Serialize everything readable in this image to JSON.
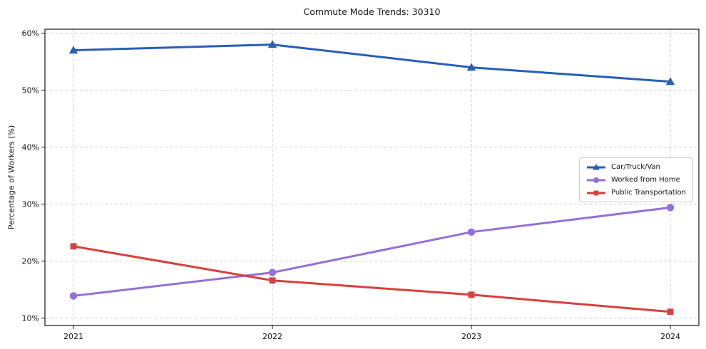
{
  "chart_data": {
    "type": "line",
    "title": "Commute Mode Trends: 30310",
    "ylabel": "Percentage of Workers (%)",
    "categories": [
      "2021",
      "2022",
      "2023",
      "2024"
    ],
    "series": [
      {
        "name": "Car/Truck/Van",
        "color": "#275eb8",
        "marker": "triangle",
        "values": [
          57.0,
          58.0,
          54.0,
          51.5
        ]
      },
      {
        "name": "Worked from Home",
        "color": "#9370db",
        "marker": "circle",
        "values": [
          13.9,
          18.0,
          25.1,
          29.4
        ]
      },
      {
        "name": "Public Transportation",
        "color": "#d8403d",
        "marker": "square",
        "values": [
          22.6,
          16.6,
          14.1,
          11.1
        ]
      }
    ],
    "yticks": [
      "10%",
      "20%",
      "30%",
      "40%",
      "50%",
      "60%"
    ],
    "ytick_values": [
      10,
      20,
      30,
      40,
      50,
      60
    ],
    "ylim": [
      8.7,
      60.7
    ],
    "grid": true,
    "grid_color": "#cccccc",
    "spine_color": "#141414",
    "legend_position": "center right",
    "legend_entries": [
      "Car/Truck/Van",
      "Worked from Home",
      "Public Transportation"
    ]
  }
}
